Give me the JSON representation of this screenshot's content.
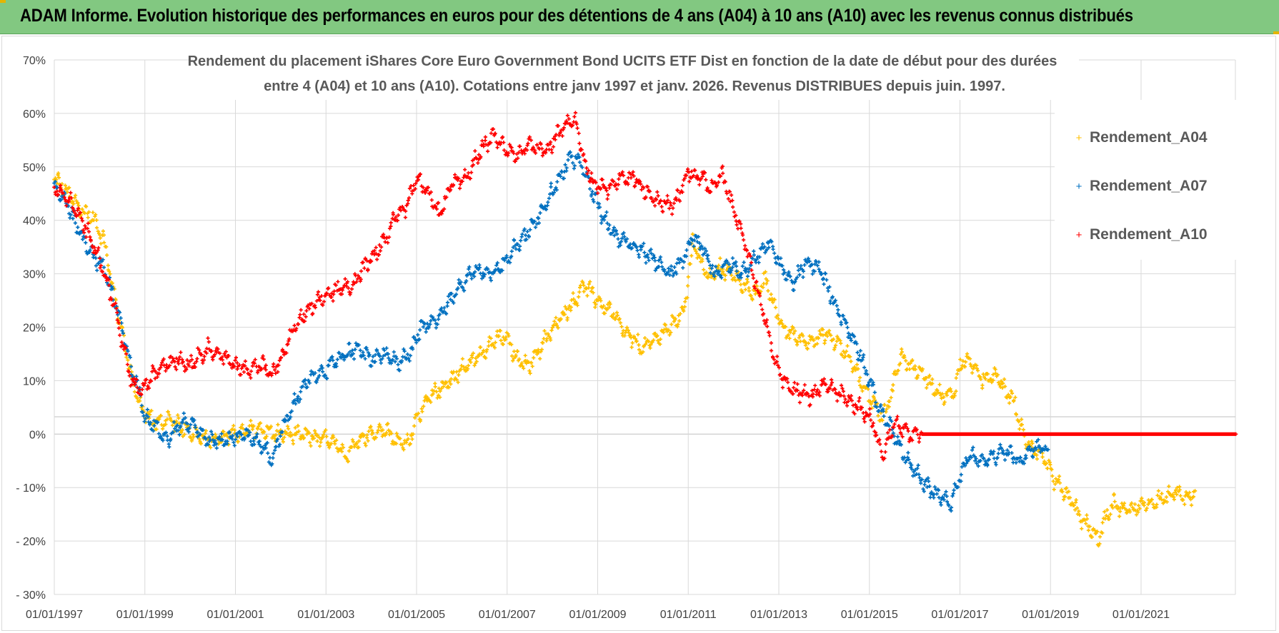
{
  "header": {
    "banner_title": "ADAM Informe. Evolution historique des performances en euros pour des détentions de 4 ans (A04) à 10 ans (A10) avec les revenus connus distribués"
  },
  "colors": {
    "banner": "#82c881",
    "A04": "#ffc000",
    "A07": "#0070c0",
    "A10": "#ff0000",
    "grid": "#d9d9d9"
  },
  "chart_data": {
    "type": "scatter",
    "title_lines": [
      "Rendement du placement iShares Core Euro Government Bond UCITS ETF Dist en fonction de la date de début pour des durées",
      "entre 4 (A04) et 10 ans (A10).  Cotations entre janv 1997 et janv. 2026. Revenus DISTRIBUES depuis juin. 1997."
    ],
    "x_axis": {
      "type": "date",
      "range": [
        "1997-01-01",
        "2023-02-01"
      ],
      "tick_labels": [
        "01/01/1997",
        "01/01/1999",
        "01/01/2001",
        "01/01/2003",
        "01/01/2005",
        "01/01/2007",
        "01/01/2009",
        "01/01/2011",
        "01/01/2013",
        "01/01/2015",
        "01/01/2017",
        "01/01/2019",
        "01/01/2021"
      ]
    },
    "y_axis": {
      "range": [
        -30,
        70
      ],
      "unit": "%",
      "tick_values": [
        70,
        60,
        50,
        40,
        30,
        20,
        10,
        0,
        -10,
        -20,
        -30
      ],
      "tick_labels": [
        "70%",
        "60%",
        "50%",
        "40%",
        "30%",
        "20%",
        "10%",
        "0%",
        "- 10%",
        "- 20%",
        "- 30%"
      ]
    },
    "legend": {
      "position": "right",
      "marker": "+"
    },
    "series": [
      {
        "name": "Rendement_A04",
        "color": "#ffc000",
        "end": 2022.2,
        "points": [
          [
            1997.0,
            48
          ],
          [
            1997.3,
            45
          ],
          [
            1997.6,
            42
          ],
          [
            1997.9,
            40
          ],
          [
            1998.1,
            36
          ],
          [
            1998.3,
            27
          ],
          [
            1998.5,
            19
          ],
          [
            1998.7,
            11
          ],
          [
            1998.9,
            5
          ],
          [
            1999.1,
            3
          ],
          [
            1999.3,
            2
          ],
          [
            1999.5,
            3
          ],
          [
            1999.7,
            2
          ],
          [
            2000.0,
            0
          ],
          [
            2000.5,
            -1
          ],
          [
            2001.0,
            0
          ],
          [
            2001.5,
            1
          ],
          [
            2001.9,
            0
          ],
          [
            2002.3,
            0
          ],
          [
            2002.7,
            -0.5
          ],
          [
            2003.0,
            -1
          ],
          [
            2003.2,
            -2
          ],
          [
            2003.45,
            -4
          ],
          [
            2003.7,
            -1
          ],
          [
            2004.0,
            0
          ],
          [
            2004.3,
            1
          ],
          [
            2004.5,
            -1
          ],
          [
            2004.8,
            -2
          ],
          [
            2005.0,
            3
          ],
          [
            2005.3,
            7
          ],
          [
            2005.6,
            9
          ],
          [
            2006.0,
            12
          ],
          [
            2006.4,
            15
          ],
          [
            2006.8,
            18
          ],
          [
            2007.0,
            18
          ],
          [
            2007.2,
            14
          ],
          [
            2007.5,
            13
          ],
          [
            2007.8,
            17
          ],
          [
            2008.2,
            22
          ],
          [
            2008.5,
            25
          ],
          [
            2008.7,
            28
          ],
          [
            2008.9,
            26
          ],
          [
            2009.1,
            24
          ],
          [
            2009.3,
            23
          ],
          [
            2009.6,
            19
          ],
          [
            2010.0,
            16
          ],
          [
            2010.3,
            18
          ],
          [
            2010.6,
            20
          ],
          [
            2010.9,
            23
          ],
          [
            2011.0,
            29
          ],
          [
            2011.1,
            36
          ],
          [
            2011.25,
            33
          ],
          [
            2011.45,
            29
          ],
          [
            2011.7,
            31
          ],
          [
            2012.0,
            30
          ],
          [
            2012.3,
            27
          ],
          [
            2012.5,
            26
          ],
          [
            2012.7,
            29
          ],
          [
            2012.9,
            24
          ],
          [
            2013.1,
            20
          ],
          [
            2013.4,
            18
          ],
          [
            2013.7,
            17
          ],
          [
            2014.0,
            19
          ],
          [
            2014.3,
            17
          ],
          [
            2014.6,
            14
          ],
          [
            2014.9,
            8
          ],
          [
            2015.1,
            6
          ],
          [
            2015.3,
            3
          ],
          [
            2015.5,
            8
          ],
          [
            2015.7,
            15
          ],
          [
            2015.9,
            13
          ],
          [
            2016.2,
            11
          ],
          [
            2016.4,
            9
          ],
          [
            2016.6,
            7
          ],
          [
            2016.9,
            8
          ],
          [
            2017.0,
            13
          ],
          [
            2017.2,
            14
          ],
          [
            2017.5,
            10
          ],
          [
            2017.8,
            11
          ],
          [
            2018.0,
            8
          ],
          [
            2018.2,
            6
          ],
          [
            2018.35,
            1
          ],
          [
            2018.5,
            -2
          ],
          [
            2018.7,
            -3
          ],
          [
            2018.9,
            -5
          ],
          [
            2019.1,
            -9
          ],
          [
            2019.3,
            -11
          ],
          [
            2019.5,
            -13
          ],
          [
            2019.7,
            -16
          ],
          [
            2019.9,
            -18
          ],
          [
            2020.05,
            -20
          ],
          [
            2020.2,
            -16
          ],
          [
            2020.4,
            -13
          ],
          [
            2020.6,
            -14
          ],
          [
            2020.9,
            -14
          ],
          [
            2021.2,
            -13
          ],
          [
            2021.5,
            -12
          ],
          [
            2021.8,
            -11
          ],
          [
            2022.0,
            -12
          ],
          [
            2022.2,
            -11
          ]
        ]
      },
      {
        "name": "Rendement_A07",
        "color": "#0070c0",
        "end": 2018.95,
        "points": [
          [
            1997.0,
            46
          ],
          [
            1997.3,
            43
          ],
          [
            1997.6,
            37
          ],
          [
            1997.9,
            33
          ],
          [
            1998.1,
            31
          ],
          [
            1998.3,
            26
          ],
          [
            1998.5,
            20
          ],
          [
            1998.7,
            12
          ],
          [
            1998.9,
            7
          ],
          [
            1999.0,
            3
          ],
          [
            1999.3,
            1
          ],
          [
            1999.5,
            -1
          ],
          [
            1999.8,
            2
          ],
          [
            2000.0,
            2
          ],
          [
            2000.4,
            -1
          ],
          [
            2000.8,
            -1
          ],
          [
            2001.2,
            0
          ],
          [
            2001.6,
            -2
          ],
          [
            2001.8,
            -5
          ],
          [
            2002.0,
            0
          ],
          [
            2002.3,
            6
          ],
          [
            2002.6,
            10
          ],
          [
            2003.0,
            12
          ],
          [
            2003.4,
            15
          ],
          [
            2003.7,
            16
          ],
          [
            2004.0,
            14
          ],
          [
            2004.3,
            15
          ],
          [
            2004.6,
            13
          ],
          [
            2004.9,
            16
          ],
          [
            2005.1,
            20
          ],
          [
            2005.5,
            22
          ],
          [
            2005.9,
            27
          ],
          [
            2006.3,
            31
          ],
          [
            2006.7,
            30
          ],
          [
            2007.0,
            33
          ],
          [
            2007.4,
            37
          ],
          [
            2007.8,
            42
          ],
          [
            2008.1,
            47
          ],
          [
            2008.4,
            52
          ],
          [
            2008.6,
            51
          ],
          [
            2008.9,
            45
          ],
          [
            2009.1,
            41
          ],
          [
            2009.4,
            37
          ],
          [
            2009.8,
            35
          ],
          [
            2010.2,
            33
          ],
          [
            2010.6,
            30
          ],
          [
            2010.9,
            33
          ],
          [
            2011.1,
            37
          ],
          [
            2011.3,
            35
          ],
          [
            2011.6,
            30
          ],
          [
            2011.9,
            32
          ],
          [
            2012.2,
            30
          ],
          [
            2012.5,
            33
          ],
          [
            2012.8,
            36
          ],
          [
            2013.0,
            32
          ],
          [
            2013.3,
            28
          ],
          [
            2013.6,
            32
          ],
          [
            2013.9,
            31
          ],
          [
            2014.2,
            25
          ],
          [
            2014.5,
            20
          ],
          [
            2014.8,
            15
          ],
          [
            2015.0,
            10
          ],
          [
            2015.2,
            5
          ],
          [
            2015.5,
            1
          ],
          [
            2015.7,
            -3
          ],
          [
            2015.9,
            -6
          ],
          [
            2016.1,
            -8
          ],
          [
            2016.3,
            -10
          ],
          [
            2016.6,
            -12
          ],
          [
            2016.8,
            -13
          ],
          [
            2017.0,
            -8
          ],
          [
            2017.2,
            -4
          ],
          [
            2017.5,
            -5
          ],
          [
            2017.8,
            -4
          ],
          [
            2018.0,
            -3
          ],
          [
            2018.3,
            -5
          ],
          [
            2018.6,
            -3
          ],
          [
            2018.8,
            -2
          ],
          [
            2018.95,
            -4
          ]
        ]
      },
      {
        "name": "Rendement_A10",
        "color": "#ff0000",
        "end": 2023.1,
        "points": [
          [
            1997.0,
            46
          ],
          [
            1997.3,
            44
          ],
          [
            1997.6,
            40
          ],
          [
            1997.9,
            35
          ],
          [
            1998.1,
            30
          ],
          [
            1998.3,
            25
          ],
          [
            1998.5,
            17
          ],
          [
            1998.7,
            10
          ],
          [
            1998.9,
            8
          ],
          [
            1999.1,
            10
          ],
          [
            1999.4,
            13
          ],
          [
            1999.7,
            14
          ],
          [
            2000.0,
            13
          ],
          [
            2000.4,
            16
          ],
          [
            2000.8,
            14
          ],
          [
            2001.2,
            12
          ],
          [
            2001.6,
            13
          ],
          [
            2001.8,
            11
          ],
          [
            2002.0,
            14
          ],
          [
            2002.3,
            20
          ],
          [
            2002.6,
            23
          ],
          [
            2003.0,
            26
          ],
          [
            2003.3,
            27
          ],
          [
            2003.6,
            28
          ],
          [
            2003.9,
            32
          ],
          [
            2004.2,
            35
          ],
          [
            2004.5,
            40
          ],
          [
            2004.8,
            43
          ],
          [
            2005.0,
            48
          ],
          [
            2005.3,
            45
          ],
          [
            2005.5,
            41
          ],
          [
            2005.8,
            47
          ],
          [
            2006.1,
            48
          ],
          [
            2006.4,
            53
          ],
          [
            2006.7,
            56
          ],
          [
            2006.9,
            54
          ],
          [
            2007.2,
            52
          ],
          [
            2007.5,
            54
          ],
          [
            2007.9,
            53
          ],
          [
            2008.1,
            56
          ],
          [
            2008.3,
            58
          ],
          [
            2008.5,
            59
          ],
          [
            2008.7,
            51
          ],
          [
            2008.9,
            47
          ],
          [
            2009.2,
            46
          ],
          [
            2009.5,
            48
          ],
          [
            2009.8,
            48
          ],
          [
            2010.1,
            45
          ],
          [
            2010.4,
            43
          ],
          [
            2010.7,
            43
          ],
          [
            2011.0,
            49
          ],
          [
            2011.3,
            48
          ],
          [
            2011.5,
            46
          ],
          [
            2011.75,
            49
          ],
          [
            2012.0,
            42
          ],
          [
            2012.25,
            36
          ],
          [
            2012.5,
            28
          ],
          [
            2012.7,
            21
          ],
          [
            2012.9,
            14
          ],
          [
            2013.1,
            10
          ],
          [
            2013.4,
            8
          ],
          [
            2013.7,
            7
          ],
          [
            2014.0,
            9
          ],
          [
            2014.3,
            8
          ],
          [
            2014.6,
            6
          ],
          [
            2014.9,
            4
          ],
          [
            2015.1,
            2
          ],
          [
            2015.2,
            -2
          ],
          [
            2015.3,
            -4
          ],
          [
            2015.45,
            0
          ],
          [
            2015.6,
            2
          ],
          [
            2015.7,
            1
          ],
          [
            2015.9,
            0
          ],
          [
            2016.1,
            0
          ],
          [
            2023.1,
            0
          ]
        ]
      }
    ]
  }
}
